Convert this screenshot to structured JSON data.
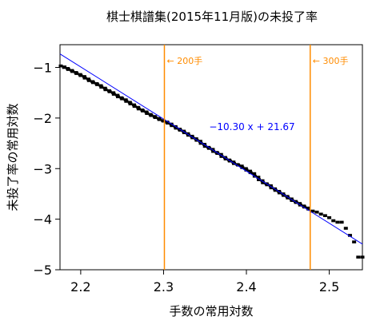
{
  "chart_data": {
    "type": "scatter",
    "title": "棋士棋譜集(2015年11月版)の未投了率",
    "xlabel": "手数の常用対数",
    "ylabel": "未投了率の常用対数",
    "xlim": [
      2.175,
      2.54
    ],
    "ylim": [
      -5,
      -0.55
    ],
    "xticks": [
      2.2,
      2.3,
      2.4,
      2.5
    ],
    "xtick_labels": [
      "2.2",
      "2.3",
      "2.4",
      "2.5"
    ],
    "yticks": [
      -1,
      -2,
      -3,
      -4,
      -5
    ],
    "ytick_labels": [
      "−1",
      "−2",
      "−3",
      "−4",
      "−5"
    ],
    "grid": false,
    "series": [
      {
        "color": "#000000",
        "marker": "square",
        "points": [
          [
            2.176,
            -0.97
          ],
          [
            2.18,
            -1.0
          ],
          [
            2.185,
            -1.04
          ],
          [
            2.19,
            -1.08
          ],
          [
            2.195,
            -1.12
          ],
          [
            2.2,
            -1.16
          ],
          [
            2.205,
            -1.21
          ],
          [
            2.21,
            -1.26
          ],
          [
            2.215,
            -1.3
          ],
          [
            2.22,
            -1.34
          ],
          [
            2.225,
            -1.39
          ],
          [
            2.23,
            -1.44
          ],
          [
            2.235,
            -1.48
          ],
          [
            2.24,
            -1.53
          ],
          [
            2.245,
            -1.58
          ],
          [
            2.25,
            -1.62
          ],
          [
            2.255,
            -1.67
          ],
          [
            2.26,
            -1.72
          ],
          [
            2.265,
            -1.77
          ],
          [
            2.27,
            -1.82
          ],
          [
            2.275,
            -1.86
          ],
          [
            2.28,
            -1.91
          ],
          [
            2.285,
            -1.95
          ],
          [
            2.29,
            -1.99
          ],
          [
            2.295,
            -2.03
          ],
          [
            2.3,
            -2.06
          ],
          [
            2.305,
            -2.1
          ],
          [
            2.31,
            -2.15
          ],
          [
            2.315,
            -2.2
          ],
          [
            2.32,
            -2.24
          ],
          [
            2.325,
            -2.29
          ],
          [
            2.33,
            -2.34
          ],
          [
            2.335,
            -2.39
          ],
          [
            2.34,
            -2.44
          ],
          [
            2.345,
            -2.5
          ],
          [
            2.35,
            -2.56
          ],
          [
            2.355,
            -2.6
          ],
          [
            2.36,
            -2.66
          ],
          [
            2.365,
            -2.7
          ],
          [
            2.37,
            -2.76
          ],
          [
            2.375,
            -2.81
          ],
          [
            2.38,
            -2.85
          ],
          [
            2.385,
            -2.9
          ],
          [
            2.39,
            -2.93
          ],
          [
            2.395,
            -2.98
          ],
          [
            2.4,
            -3.03
          ],
          [
            2.405,
            -3.08
          ],
          [
            2.41,
            -3.15
          ],
          [
            2.415,
            -3.22
          ],
          [
            2.42,
            -3.28
          ],
          [
            2.425,
            -3.32
          ],
          [
            2.43,
            -3.38
          ],
          [
            2.435,
            -3.43
          ],
          [
            2.44,
            -3.48
          ],
          [
            2.445,
            -3.53
          ],
          [
            2.45,
            -3.58
          ],
          [
            2.455,
            -3.63
          ],
          [
            2.46,
            -3.67
          ],
          [
            2.465,
            -3.72
          ],
          [
            2.47,
            -3.76
          ],
          [
            2.475,
            -3.8
          ],
          [
            2.48,
            -3.84
          ],
          [
            2.485,
            -3.86
          ],
          [
            2.49,
            -3.9
          ],
          [
            2.495,
            -3.93
          ],
          [
            2.5,
            -3.97
          ],
          [
            2.505,
            -4.03
          ],
          [
            2.51,
            -4.06
          ],
          [
            2.515,
            -4.06
          ],
          [
            2.52,
            -4.18
          ],
          [
            2.525,
            -4.32
          ],
          [
            2.53,
            -4.45
          ],
          [
            2.535,
            -4.75
          ],
          [
            2.54,
            -4.75
          ]
        ]
      }
    ],
    "fit_line": {
      "color": "#0000ff",
      "slope": -10.3,
      "intercept": 21.67,
      "label": "−10.30 x + 21.67"
    },
    "vlines": [
      {
        "x": 2.301,
        "color": "#ff8c00",
        "label": "← 200手"
      },
      {
        "x": 2.477,
        "color": "#ff8c00",
        "label": "← 300手"
      }
    ]
  }
}
